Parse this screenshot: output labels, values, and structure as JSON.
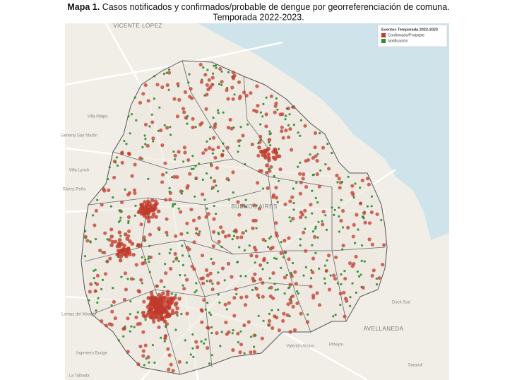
{
  "header": {
    "label": "Mapa 1.",
    "title": "Casos notificados y confirmados/probable de dengue por georreferenciación de comuna.",
    "subtitle": "Temporada 2022-2023."
  },
  "legend": {
    "title": "Eventos Temporada 2022-2023",
    "items": [
      {
        "label": "Confirmado/Probable",
        "color": "#c0392b"
      },
      {
        "label": "Notificación",
        "color": "#2e8b2e"
      }
    ]
  },
  "places": [
    "VICENTE LÓPEZ",
    "Villa Maipú",
    "General San Martín",
    "Villa Lynch",
    "Sáenz Peña",
    "BUENOS AIRES",
    "Dock Sud",
    "AVELLANEDA",
    "Valentín Alsina",
    "Piñeyro",
    "Lomas del Mirador",
    "La Tablada",
    "Sarandí",
    "Ingeniero Budge"
  ]
}
